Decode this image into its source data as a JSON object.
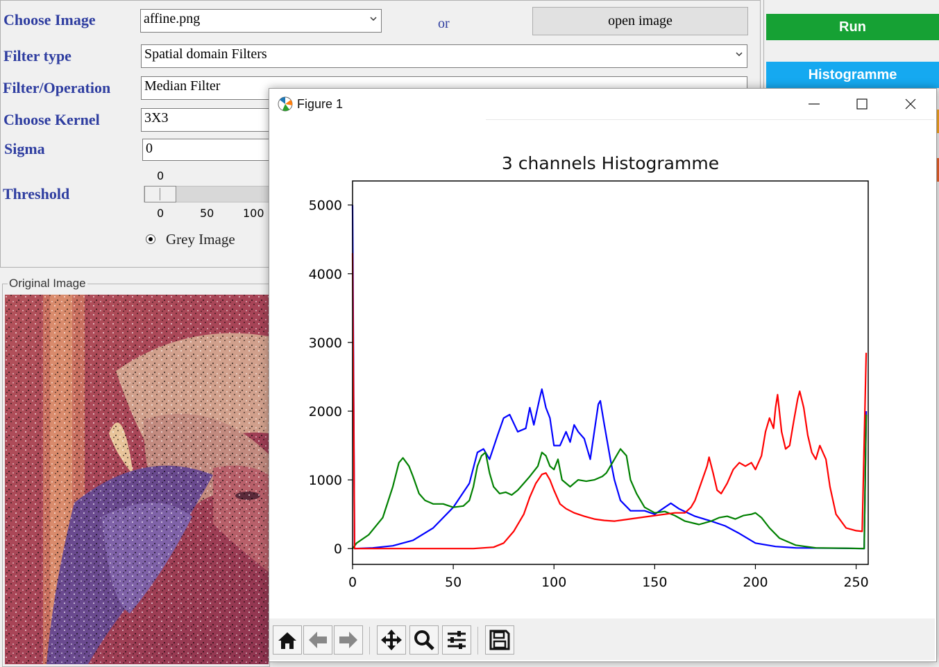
{
  "form": {
    "choose_image_label": "Choose Image",
    "choose_image_value": "affine.png",
    "or_label": "or",
    "open_image_button": "open image",
    "filter_type_label": "Filter type",
    "filter_type_value": "Spatial domain Filters",
    "filter_op_label": "Filter/Operation",
    "filter_op_value": "Median Filter",
    "kernel_label": "Choose Kernel",
    "kernel_value": "3X3",
    "sigma_label": "Sigma",
    "sigma_value": "0",
    "threshold_label": "Threshold",
    "threshold_value": "0",
    "threshold_ticks": [
      "0",
      "50",
      "100"
    ],
    "grey_image_label": "Grey Image"
  },
  "side": {
    "run_label": "Run",
    "histogram_label": "Histogramme",
    "run_color": "#16a134",
    "histogram_color": "#15a9f0"
  },
  "original_image": {
    "group_label": "Original Image"
  },
  "figure": {
    "window_title": "Figure 1",
    "icons": [
      "matplotlib-icon",
      "minimize-icon",
      "maximize-icon",
      "close-icon"
    ],
    "toolbar_icons": [
      "home-icon",
      "back-arrow-icon",
      "forward-arrow-icon",
      "pan-icon",
      "zoom-icon",
      "configure-icon",
      "save-icon"
    ]
  },
  "chart_data": {
    "type": "line",
    "title": "3 channels Histogramme",
    "xlabel": "",
    "ylabel": "",
    "xlim": [
      0,
      256
    ],
    "ylim": [
      -230,
      5350
    ],
    "xticks": [
      "0",
      "50",
      "100",
      "150",
      "200",
      "250"
    ],
    "yticks": [
      "0",
      "1000",
      "2000",
      "3000",
      "4000",
      "5000"
    ],
    "grid": false,
    "series": [
      {
        "color": "#0000ff",
        "points": [
          [
            0,
            5000
          ],
          [
            1,
            0
          ],
          [
            10,
            10
          ],
          [
            20,
            40
          ],
          [
            30,
            120
          ],
          [
            40,
            300
          ],
          [
            50,
            600
          ],
          [
            58,
            950
          ],
          [
            62,
            1400
          ],
          [
            65,
            1450
          ],
          [
            68,
            1300
          ],
          [
            72,
            1650
          ],
          [
            75,
            1900
          ],
          [
            78,
            1950
          ],
          [
            82,
            1700
          ],
          [
            86,
            1750
          ],
          [
            88,
            2050
          ],
          [
            90,
            1800
          ],
          [
            93,
            2200
          ],
          [
            94,
            2320
          ],
          [
            96,
            2050
          ],
          [
            98,
            1900
          ],
          [
            100,
            1500
          ],
          [
            103,
            1500
          ],
          [
            106,
            1700
          ],
          [
            108,
            1550
          ],
          [
            110,
            1800
          ],
          [
            112,
            1700
          ],
          [
            115,
            1600
          ],
          [
            117,
            1400
          ],
          [
            118,
            1300
          ],
          [
            120,
            1700
          ],
          [
            122,
            2100
          ],
          [
            123,
            2150
          ],
          [
            125,
            1800
          ],
          [
            128,
            1300
          ],
          [
            130,
            1000
          ],
          [
            133,
            700
          ],
          [
            138,
            550
          ],
          [
            145,
            550
          ],
          [
            150,
            500
          ],
          [
            155,
            600
          ],
          [
            158,
            660
          ],
          [
            162,
            580
          ],
          [
            170,
            470
          ],
          [
            178,
            400
          ],
          [
            185,
            330
          ],
          [
            192,
            220
          ],
          [
            200,
            80
          ],
          [
            210,
            30
          ],
          [
            220,
            10
          ],
          [
            240,
            5
          ],
          [
            254,
            0
          ],
          [
            255,
            2000
          ]
        ]
      },
      {
        "color": "#008000",
        "points": [
          [
            0,
            0
          ],
          [
            2,
            80
          ],
          [
            8,
            200
          ],
          [
            15,
            450
          ],
          [
            20,
            900
          ],
          [
            23,
            1250
          ],
          [
            25,
            1320
          ],
          [
            28,
            1200
          ],
          [
            30,
            1050
          ],
          [
            33,
            800
          ],
          [
            36,
            700
          ],
          [
            40,
            650
          ],
          [
            45,
            650
          ],
          [
            50,
            600
          ],
          [
            55,
            620
          ],
          [
            58,
            700
          ],
          [
            60,
            900
          ],
          [
            62,
            1200
          ],
          [
            64,
            1350
          ],
          [
            66,
            1400
          ],
          [
            68,
            1100
          ],
          [
            70,
            900
          ],
          [
            73,
            800
          ],
          [
            76,
            820
          ],
          [
            79,
            780
          ],
          [
            82,
            850
          ],
          [
            85,
            950
          ],
          [
            88,
            1050
          ],
          [
            92,
            1200
          ],
          [
            94,
            1400
          ],
          [
            96,
            1350
          ],
          [
            98,
            1200
          ],
          [
            100,
            1150
          ],
          [
            102,
            1300
          ],
          [
            104,
            1000
          ],
          [
            108,
            900
          ],
          [
            112,
            1000
          ],
          [
            116,
            980
          ],
          [
            120,
            1000
          ],
          [
            124,
            1050
          ],
          [
            126,
            1100
          ],
          [
            128,
            1200
          ],
          [
            130,
            1300
          ],
          [
            133,
            1450
          ],
          [
            136,
            1350
          ],
          [
            138,
            1000
          ],
          [
            141,
            800
          ],
          [
            145,
            600
          ],
          [
            150,
            520
          ],
          [
            155,
            540
          ],
          [
            160,
            480
          ],
          [
            165,
            400
          ],
          [
            172,
            350
          ],
          [
            178,
            400
          ],
          [
            182,
            450
          ],
          [
            186,
            470
          ],
          [
            190,
            430
          ],
          [
            194,
            480
          ],
          [
            198,
            500
          ],
          [
            200,
            520
          ],
          [
            203,
            450
          ],
          [
            207,
            300
          ],
          [
            212,
            150
          ],
          [
            220,
            50
          ],
          [
            230,
            10
          ],
          [
            245,
            5
          ],
          [
            254,
            0
          ],
          [
            255,
            1950
          ]
        ]
      },
      {
        "color": "#ff0000",
        "points": [
          [
            0,
            4300
          ],
          [
            1,
            0
          ],
          [
            20,
            0
          ],
          [
            40,
            0
          ],
          [
            60,
            0
          ],
          [
            70,
            20
          ],
          [
            75,
            80
          ],
          [
            80,
            250
          ],
          [
            85,
            500
          ],
          [
            88,
            750
          ],
          [
            91,
            950
          ],
          [
            94,
            1080
          ],
          [
            96,
            1100
          ],
          [
            98,
            1000
          ],
          [
            100,
            850
          ],
          [
            103,
            650
          ],
          [
            106,
            580
          ],
          [
            110,
            520
          ],
          [
            115,
            470
          ],
          [
            120,
            430
          ],
          [
            125,
            410
          ],
          [
            130,
            400
          ],
          [
            135,
            420
          ],
          [
            140,
            440
          ],
          [
            145,
            460
          ],
          [
            150,
            480
          ],
          [
            155,
            500
          ],
          [
            160,
            520
          ],
          [
            165,
            520
          ],
          [
            168,
            600
          ],
          [
            170,
            700
          ],
          [
            173,
            950
          ],
          [
            176,
            1200
          ],
          [
            177,
            1330
          ],
          [
            179,
            1100
          ],
          [
            181,
            850
          ],
          [
            183,
            800
          ],
          [
            186,
            950
          ],
          [
            189,
            1150
          ],
          [
            192,
            1250
          ],
          [
            195,
            1200
          ],
          [
            198,
            1250
          ],
          [
            200,
            1150
          ],
          [
            203,
            1350
          ],
          [
            205,
            1700
          ],
          [
            207,
            1900
          ],
          [
            209,
            1750
          ],
          [
            210,
            2050
          ],
          [
            211,
            2240
          ],
          [
            213,
            1700
          ],
          [
            215,
            1450
          ],
          [
            217,
            1500
          ],
          [
            219,
            1850
          ],
          [
            221,
            2180
          ],
          [
            222,
            2290
          ],
          [
            224,
            2050
          ],
          [
            226,
            1650
          ],
          [
            228,
            1400
          ],
          [
            230,
            1300
          ],
          [
            232,
            1500
          ],
          [
            235,
            1300
          ],
          [
            237,
            900
          ],
          [
            240,
            500
          ],
          [
            245,
            300
          ],
          [
            250,
            260
          ],
          [
            253,
            250
          ],
          [
            255,
            2850
          ]
        ]
      }
    ]
  }
}
